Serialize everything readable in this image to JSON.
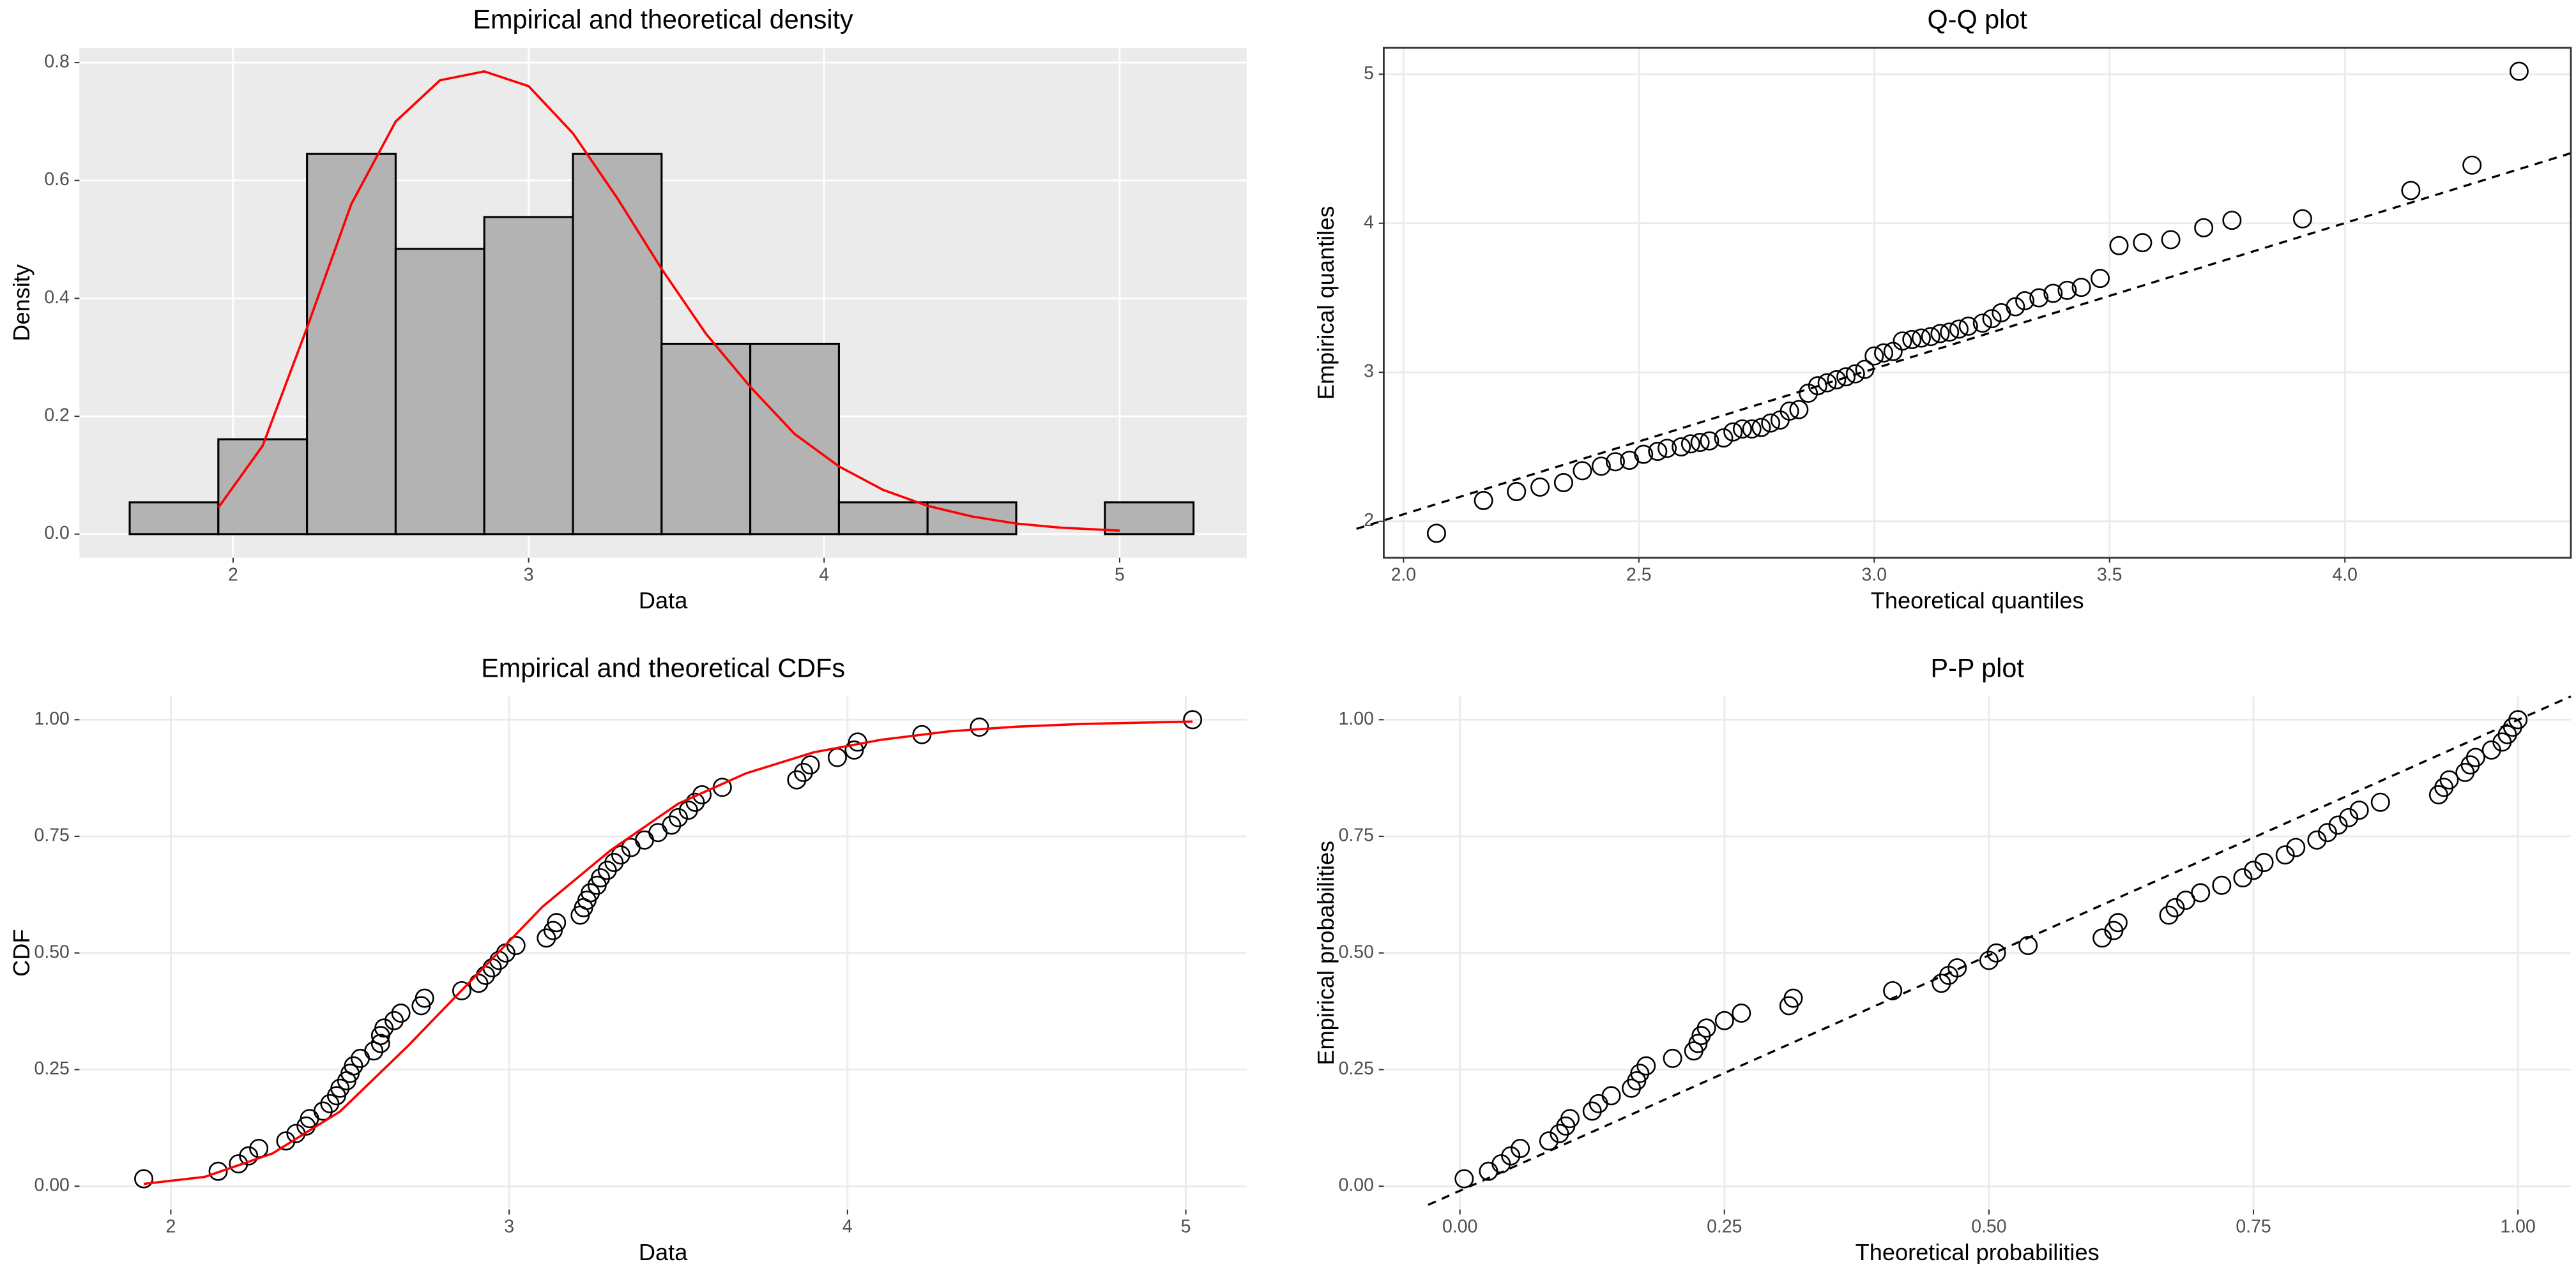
{
  "chart_data": [
    {
      "type": "histogram",
      "title": "Empirical and theoretical density",
      "xlabel": "Data",
      "ylabel": "Density",
      "bins": [
        1.65,
        1.95,
        2.25,
        2.55,
        2.85,
        3.15,
        3.45,
        3.75,
        4.05,
        4.35,
        4.65,
        4.95,
        5.25
      ],
      "values": [
        0.054,
        0.161,
        0.645,
        0.484,
        0.538,
        0.645,
        0.323,
        0.323,
        0.054,
        0.054,
        0,
        0.054
      ],
      "color": "#b3b3b3",
      "curve": {
        "color": "#ff0000",
        "x": [
          1.95,
          2.1,
          2.25,
          2.4,
          2.55,
          2.7,
          2.85,
          3.0,
          3.15,
          3.3,
          3.45,
          3.6,
          3.75,
          3.9,
          4.05,
          4.2,
          4.35,
          4.5,
          4.65,
          4.8,
          5.0
        ],
        "y": [
          0.045,
          0.15,
          0.35,
          0.56,
          0.7,
          0.77,
          0.785,
          0.76,
          0.68,
          0.57,
          0.45,
          0.34,
          0.25,
          0.17,
          0.115,
          0.075,
          0.048,
          0.03,
          0.018,
          0.011,
          0.006
        ]
      },
      "xlim": [
        1.48,
        5.43
      ],
      "ylim": [
        -0.04,
        0.825
      ],
      "xticks": [
        2,
        3,
        4,
        5
      ],
      "yticks": [
        {
          "value": 0,
          "label": "0.0"
        },
        0.2,
        0.4,
        0.6,
        0.8
      ],
      "grid": true,
      "background": "#ebebeb"
    },
    {
      "type": "scatter",
      "title": "Q-Q plot",
      "xlabel": "Theoretical quantiles",
      "ylabel": "Empirical quantiles",
      "x": [
        2.07,
        2.17,
        2.24,
        2.29,
        2.34,
        2.38,
        2.42,
        2.45,
        2.48,
        2.51,
        2.54,
        2.56,
        2.59,
        2.61,
        2.63,
        2.65,
        2.68,
        2.7,
        2.72,
        2.74,
        2.76,
        2.78,
        2.8,
        2.82,
        2.84,
        2.86,
        2.88,
        2.9,
        2.92,
        2.94,
        2.96,
        2.98,
        3.0,
        3.02,
        3.04,
        3.06,
        3.08,
        3.1,
        3.12,
        3.14,
        3.16,
        3.18,
        3.2,
        3.23,
        3.25,
        3.27,
        3.3,
        3.32,
        3.35,
        3.38,
        3.41,
        3.44,
        3.48,
        3.52,
        3.57,
        3.63,
        3.7,
        3.76,
        3.91,
        4.14,
        4.27,
        4.37
      ],
      "values": [
        1.92,
        2.14,
        2.2,
        2.23,
        2.26,
        2.34,
        2.37,
        2.4,
        2.41,
        2.45,
        2.47,
        2.49,
        2.5,
        2.52,
        2.53,
        2.54,
        2.56,
        2.6,
        2.62,
        2.62,
        2.63,
        2.66,
        2.68,
        2.74,
        2.75,
        2.86,
        2.91,
        2.93,
        2.95,
        2.97,
        2.99,
        3.02,
        3.11,
        3.13,
        3.14,
        3.21,
        3.22,
        3.23,
        3.24,
        3.26,
        3.27,
        3.29,
        3.31,
        3.33,
        3.36,
        3.4,
        3.44,
        3.48,
        3.5,
        3.53,
        3.55,
        3.57,
        3.63,
        3.85,
        3.87,
        3.89,
        3.97,
        4.02,
        4.03,
        4.22,
        4.39,
        5.02
      ],
      "line": {
        "x": [
          1.9,
          4.5
        ],
        "y": [
          1.95,
          4.49
        ]
      },
      "xlim": [
        1.958,
        4.48
      ],
      "ylim": [
        1.756,
        5.177
      ],
      "xticks": [
        {
          "value": 2,
          "label": "2.0"
        },
        2.5,
        {
          "value": 3,
          "label": "3.0"
        },
        3.5,
        {
          "value": 4,
          "label": "4.0"
        }
      ],
      "yticks": [
        2,
        3,
        4,
        5
      ],
      "grid": true,
      "frame": true
    },
    {
      "type": "scatter",
      "title": "Empirical and theoretical CDFs",
      "xlabel": "Data",
      "ylabel": "CDF",
      "x": [
        1.92,
        2.14,
        2.2,
        2.23,
        2.26,
        2.34,
        2.37,
        2.4,
        2.41,
        2.45,
        2.47,
        2.49,
        2.5,
        2.52,
        2.53,
        2.54,
        2.56,
        2.6,
        2.62,
        2.62,
        2.63,
        2.66,
        2.68,
        2.74,
        2.75,
        2.86,
        2.91,
        2.93,
        2.95,
        2.97,
        2.99,
        3.02,
        3.11,
        3.13,
        3.14,
        3.21,
        3.22,
        3.23,
        3.24,
        3.26,
        3.27,
        3.29,
        3.31,
        3.33,
        3.36,
        3.4,
        3.44,
        3.48,
        3.5,
        3.53,
        3.55,
        3.57,
        3.63,
        3.85,
        3.87,
        3.89,
        3.97,
        4.02,
        4.03,
        4.22,
        4.39,
        5.02
      ],
      "values": [
        0.016,
        0.032,
        0.048,
        0.065,
        0.081,
        0.097,
        0.113,
        0.129,
        0.145,
        0.161,
        0.177,
        0.194,
        0.21,
        0.226,
        0.242,
        0.258,
        0.274,
        0.29,
        0.306,
        0.323,
        0.339,
        0.355,
        0.371,
        0.387,
        0.403,
        0.419,
        0.435,
        0.452,
        0.468,
        0.484,
        0.5,
        0.516,
        0.532,
        0.548,
        0.565,
        0.581,
        0.597,
        0.613,
        0.629,
        0.645,
        0.661,
        0.677,
        0.694,
        0.71,
        0.726,
        0.742,
        0.758,
        0.774,
        0.79,
        0.806,
        0.823,
        0.839,
        0.855,
        0.871,
        0.887,
        0.903,
        0.919,
        0.935,
        0.952,
        0.968,
        0.984,
        1.0
      ],
      "curve": {
        "color": "#ff0000",
        "x": [
          1.92,
          2.1,
          2.3,
          2.5,
          2.7,
          2.9,
          3.1,
          3.3,
          3.5,
          3.7,
          3.9,
          4.1,
          4.3,
          4.5,
          4.7,
          5.02
        ],
        "y": [
          0.005,
          0.02,
          0.07,
          0.16,
          0.3,
          0.45,
          0.6,
          0.72,
          0.82,
          0.885,
          0.93,
          0.957,
          0.975,
          0.985,
          0.991,
          0.996
        ]
      },
      "xlim": [
        1.73,
        5.18
      ],
      "ylim": [
        -0.05,
        1.05
      ],
      "xticks": [
        2,
        3,
        4,
        5
      ],
      "yticks": [
        {
          "value": 0,
          "label": "0.00"
        },
        0.25,
        {
          "value": 0.5,
          "label": "0.50"
        },
        0.75,
        {
          "value": 1,
          "label": "1.00"
        }
      ],
      "grid": true
    },
    {
      "type": "scatter",
      "title": "P-P plot",
      "xlabel": "Theoretical probabilities",
      "ylabel": "Empirical probabilities",
      "x": [
        0.004,
        0.027,
        0.039,
        0.048,
        0.057,
        0.084,
        0.094,
        0.1,
        0.104,
        0.125,
        0.131,
        0.143,
        0.162,
        0.167,
        0.17,
        0.176,
        0.201,
        0.221,
        0.225,
        0.228,
        0.233,
        0.25,
        0.266,
        0.311,
        0.315,
        0.409,
        0.455,
        0.462,
        0.47,
        0.5,
        0.507,
        0.537,
        0.607,
        0.618,
        0.622,
        0.67,
        0.676,
        0.686,
        0.7,
        0.72,
        0.74,
        0.75,
        0.76,
        0.78,
        0.79,
        0.81,
        0.82,
        0.83,
        0.84,
        0.85,
        0.87,
        0.925,
        0.93,
        0.935,
        0.95,
        0.955,
        0.96,
        0.975,
        0.985,
        0.99,
        0.995,
        1.0
      ],
      "values": [
        0.016,
        0.032,
        0.048,
        0.065,
        0.081,
        0.097,
        0.113,
        0.129,
        0.145,
        0.161,
        0.177,
        0.194,
        0.21,
        0.226,
        0.242,
        0.258,
        0.274,
        0.29,
        0.306,
        0.323,
        0.339,
        0.355,
        0.371,
        0.387,
        0.403,
        0.419,
        0.435,
        0.452,
        0.468,
        0.484,
        0.5,
        0.516,
        0.532,
        0.548,
        0.565,
        0.581,
        0.597,
        0.613,
        0.629,
        0.645,
        0.661,
        0.677,
        0.694,
        0.71,
        0.726,
        0.742,
        0.758,
        0.774,
        0.79,
        0.806,
        0.823,
        0.839,
        0.855,
        0.871,
        0.887,
        0.903,
        0.919,
        0.935,
        0.952,
        0.968,
        0.984,
        1.0
      ],
      "line": {
        "x": [
          -0.03,
          1.05
        ],
        "y": [
          -0.04,
          1.05
        ]
      },
      "xlim": [
        -0.072,
        1.05
      ],
      "ylim": [
        -0.05,
        1.05
      ],
      "xticks": [
        {
          "value": 0,
          "label": "0.00"
        },
        0.25,
        {
          "value": 0.5,
          "label": "0.50"
        },
        0.75,
        {
          "value": 1,
          "label": "1.00"
        }
      ],
      "yticks": [
        {
          "value": 0,
          "label": "0.00"
        },
        0.25,
        {
          "value": 0.5,
          "label": "0.50"
        },
        0.75,
        {
          "value": 1,
          "label": "1.00"
        }
      ],
      "grid": true
    }
  ]
}
